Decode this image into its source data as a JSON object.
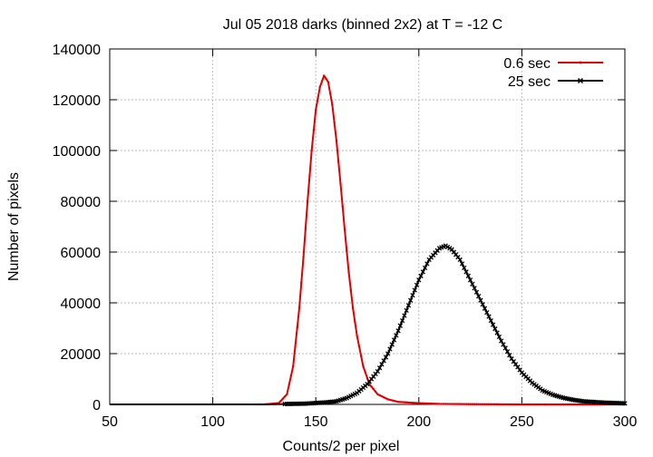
{
  "chart_data": {
    "type": "line",
    "title": "Jul 05 2018 darks (binned 2x2) at T = -12 C",
    "xlabel": "Counts/2 per pixel",
    "ylabel": "Number of pixels",
    "xlim": [
      50,
      300
    ],
    "ylim": [
      0,
      140000
    ],
    "xticks": [
      50,
      100,
      150,
      200,
      250,
      300
    ],
    "yticks": [
      0,
      20000,
      40000,
      60000,
      80000,
      100000,
      120000,
      140000
    ],
    "grid": true,
    "legend_position": "top-right",
    "series": [
      {
        "name": "0.6 sec",
        "color": "#e00000",
        "marker": "point",
        "x": [
          50,
          100,
          125,
          132,
          136,
          139,
          142,
          144,
          146,
          148,
          150,
          152,
          154,
          156,
          158,
          160,
          162,
          164,
          166,
          168,
          170,
          173,
          176,
          180,
          185,
          190,
          200,
          210,
          225,
          250,
          300
        ],
        "values": [
          0,
          0,
          0,
          500,
          4000,
          15000,
          38000,
          58000,
          80000,
          100000,
          116000,
          125000,
          129500,
          127000,
          118000,
          104000,
          87000,
          69000,
          52000,
          38000,
          27000,
          15000,
          8000,
          4000,
          2000,
          1000,
          500,
          200,
          100,
          0,
          0
        ]
      },
      {
        "name": "25 sec",
        "color": "#000000",
        "marker": "cross",
        "x": [
          50,
          125,
          137,
          145,
          155,
          160,
          165,
          170,
          175,
          180,
          185,
          190,
          195,
          200,
          205,
          210,
          213,
          216,
          220,
          225,
          230,
          235,
          240,
          245,
          250,
          255,
          260,
          265,
          270,
          275,
          280,
          290,
          300
        ],
        "values": [
          0,
          0,
          200,
          300,
          800,
          1200,
          2500,
          4500,
          8000,
          13000,
          20000,
          29000,
          39000,
          49000,
          57000,
          61500,
          62500,
          61000,
          57000,
          49000,
          41000,
          33000,
          25000,
          18000,
          12500,
          8500,
          5500,
          3800,
          2600,
          1800,
          1200,
          700,
          400
        ]
      }
    ]
  }
}
